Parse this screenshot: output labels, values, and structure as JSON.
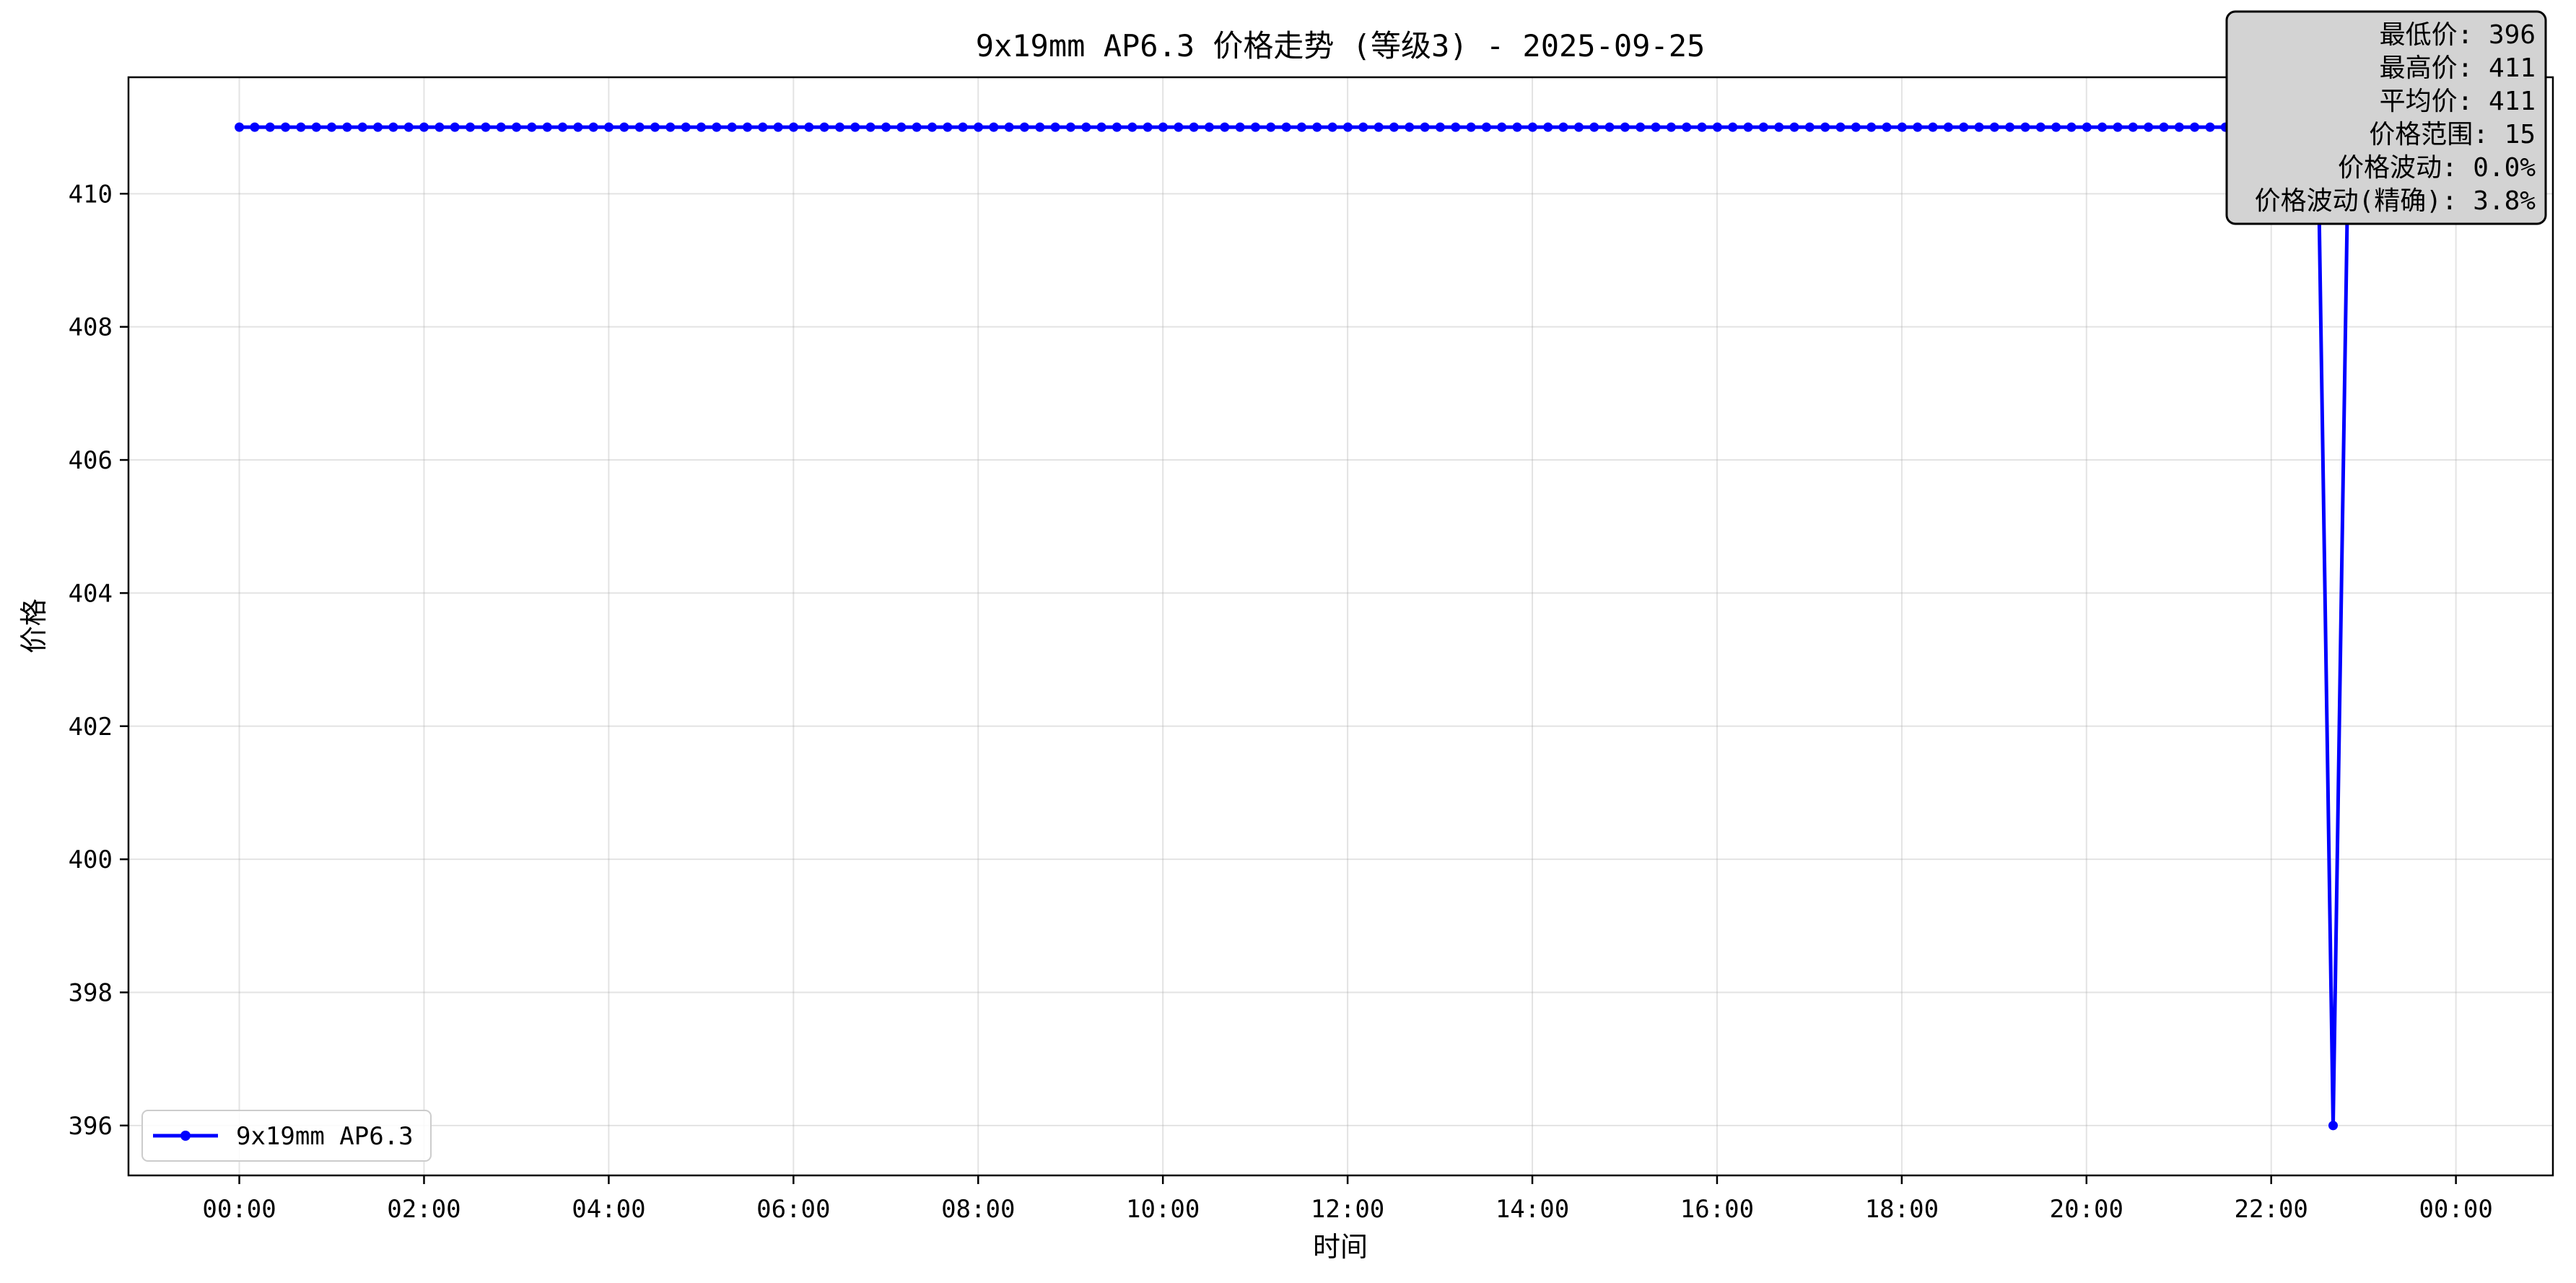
{
  "chart_data": {
    "type": "line",
    "title": "9x19mm AP6.3 价格走势 (等级3) - 2025-09-25",
    "xlabel": "时间",
    "ylabel": "价格",
    "x_tick_labels": [
      "00:00",
      "02:00",
      "04:00",
      "06:00",
      "08:00",
      "10:00",
      "12:00",
      "14:00",
      "16:00",
      "18:00",
      "20:00",
      "22:00",
      "00:00"
    ],
    "y_ticks": [
      396,
      398,
      400,
      402,
      404,
      406,
      408,
      410
    ],
    "ylim": [
      395.25,
      411.75
    ],
    "xlim_hours": [
      -1.2,
      25.05
    ],
    "grid": true,
    "legend_placement": "lower-left",
    "series": [
      {
        "name": "9x19mm AP6.3",
        "color": "#0000ff",
        "marker": "circle",
        "x_hours_start": 0,
        "x_hours_step": 0.1667,
        "x_hours_end": 23.5,
        "baseline_value": 411,
        "dip": {
          "x_hours": 22.67,
          "value": 396
        }
      }
    ],
    "stats_box": {
      "placement": "top-right",
      "lines": [
        "最低价: 396",
        "最高价: 411",
        "平均价: 411",
        "价格范围: 15",
        "价格波动: 0.0%",
        "价格波动(精确): 3.8%"
      ]
    }
  }
}
